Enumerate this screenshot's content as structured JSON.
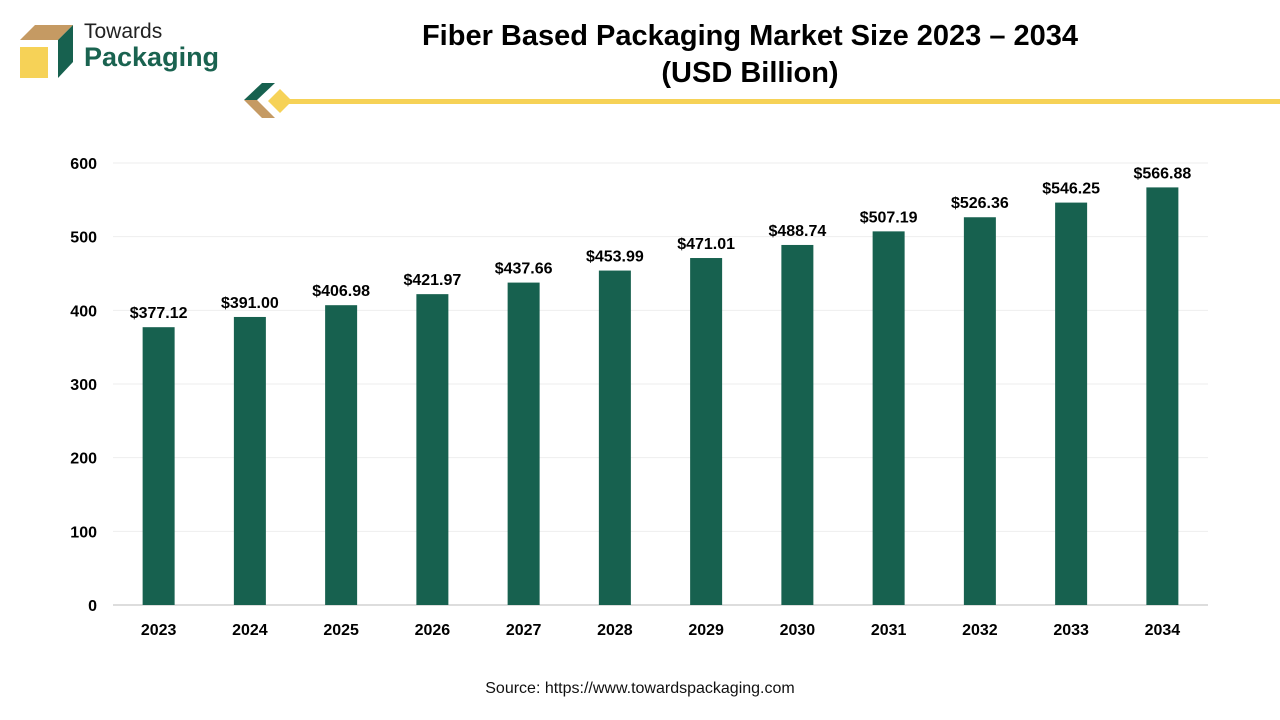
{
  "brand": {
    "line1": "Towards",
    "line2": "Packaging"
  },
  "title_line1": "Fiber Based Packaging Market Size 2023 – 2034",
  "title_line2": "(USD Billion)",
  "source": "Source: https://www.towardspackaging.com",
  "colors": {
    "bar": "#17614f",
    "accent": "#f6d257",
    "tan": "#c59a63"
  },
  "chart_data": {
    "type": "bar",
    "title": "Fiber Based Packaging Market Size 2023 – 2034 (USD Billion)",
    "categories": [
      "2023",
      "2024",
      "2025",
      "2026",
      "2027",
      "2028",
      "2029",
      "2030",
      "2031",
      "2032",
      "2033",
      "2034"
    ],
    "values": [
      377.12,
      391.0,
      406.98,
      421.97,
      437.66,
      453.99,
      471.01,
      488.74,
      507.19,
      526.36,
      546.25,
      566.88
    ],
    "data_labels": [
      "$377.12",
      "$391.00",
      "$406.98",
      "$421.97",
      "$437.66",
      "$453.99",
      "$471.01",
      "$488.74",
      "$507.19",
      "$526.36",
      "$546.25",
      "$566.88"
    ],
    "yticks": [
      0,
      100,
      200,
      300,
      400,
      500,
      600
    ],
    "ylim": [
      0,
      600
    ],
    "grid": true,
    "xlabel": "",
    "ylabel": ""
  }
}
